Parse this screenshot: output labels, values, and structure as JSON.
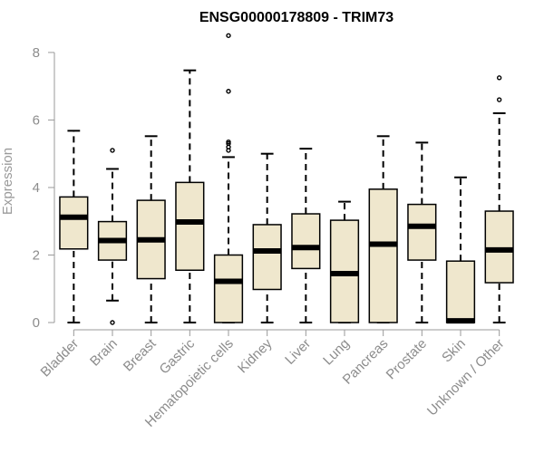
{
  "chart_data": {
    "type": "boxplot",
    "title": "ENSG00000178809 - TRIM73",
    "ylabel": "Expression",
    "xlabel": "",
    "ylim": [
      0,
      8.4
    ],
    "yticks": [
      0,
      2,
      4,
      6,
      8
    ],
    "box_fill": "#efe7cd",
    "categories": [
      "Bladder",
      "Brain",
      "Breast",
      "Gastric",
      "Hematopoietic cells",
      "Kidney",
      "Liver",
      "Lung",
      "Pancreas",
      "Prostate",
      "Skin",
      "Unknown / Other"
    ],
    "boxes": [
      {
        "whisker_low": 0.0,
        "q1": 2.18,
        "median": 3.12,
        "q3": 3.72,
        "whisker_high": 5.68,
        "outliers": []
      },
      {
        "whisker_low": 0.65,
        "q1": 1.85,
        "median": 2.43,
        "q3": 2.99,
        "whisker_high": 4.55,
        "outliers": [
          0.0,
          5.1
        ]
      },
      {
        "whisker_low": 0.0,
        "q1": 1.3,
        "median": 2.45,
        "q3": 3.62,
        "whisker_high": 5.52,
        "outliers": []
      },
      {
        "whisker_low": 0.0,
        "q1": 1.55,
        "median": 2.98,
        "q3": 4.15,
        "whisker_high": 7.47,
        "outliers": []
      },
      {
        "whisker_low": 0.0,
        "q1": 0.0,
        "median": 1.22,
        "q3": 2.0,
        "whisker_high": 4.9,
        "outliers": [
          5.1,
          5.2,
          5.3,
          5.35,
          6.85,
          8.5
        ]
      },
      {
        "whisker_low": 0.0,
        "q1": 0.98,
        "median": 2.12,
        "q3": 2.9,
        "whisker_high": 5.0,
        "outliers": []
      },
      {
        "whisker_low": 0.0,
        "q1": 1.6,
        "median": 2.22,
        "q3": 3.22,
        "whisker_high": 5.15,
        "outliers": []
      },
      {
        "whisker_low": 0.0,
        "q1": 0.0,
        "median": 1.45,
        "q3": 3.03,
        "whisker_high": 3.58,
        "outliers": []
      },
      {
        "whisker_low": 0.0,
        "q1": 0.0,
        "median": 2.32,
        "q3": 3.95,
        "whisker_high": 5.52,
        "outliers": []
      },
      {
        "whisker_low": 0.0,
        "q1": 1.85,
        "median": 2.85,
        "q3": 3.5,
        "whisker_high": 5.33,
        "outliers": []
      },
      {
        "whisker_low": 0.0,
        "q1": 0.0,
        "median": 0.05,
        "q3": 1.82,
        "whisker_high": 4.3,
        "outliers": []
      },
      {
        "whisker_low": 0.0,
        "q1": 1.18,
        "median": 2.15,
        "q3": 3.3,
        "whisker_high": 6.2,
        "outliers": [
          6.6,
          7.25
        ]
      }
    ]
  }
}
